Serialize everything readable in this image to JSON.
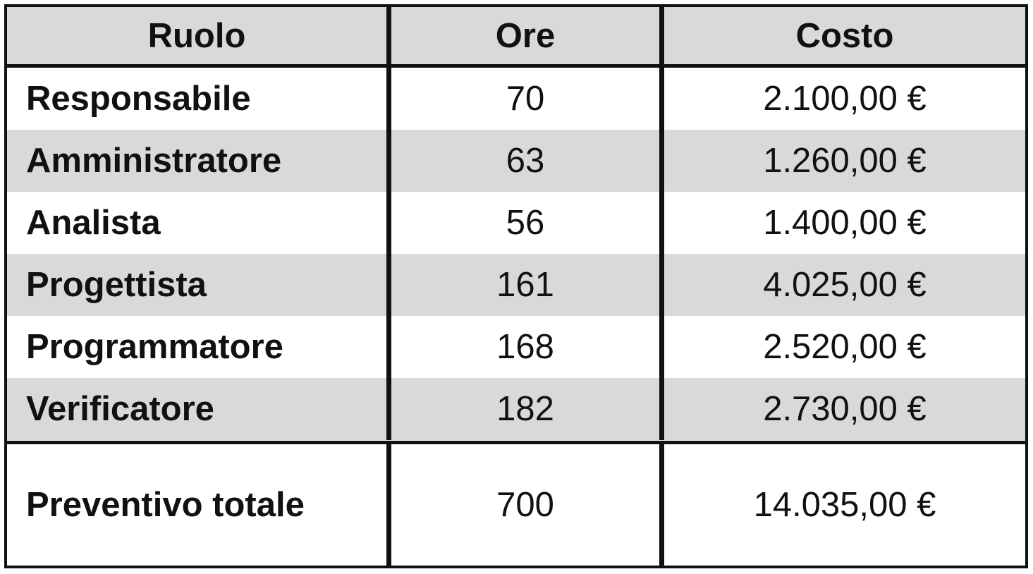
{
  "table": {
    "headers": [
      "Ruolo",
      "Ore",
      "Costo"
    ],
    "rows": [
      {
        "role": "Responsabile",
        "hours": "70",
        "cost": "2.100,00 €"
      },
      {
        "role": "Amministratore",
        "hours": "63",
        "cost": "1.260,00 €"
      },
      {
        "role": "Analista",
        "hours": "56",
        "cost": "1.400,00 €"
      },
      {
        "role": "Progettista",
        "hours": "161",
        "cost": "4.025,00 €"
      },
      {
        "role": "Programmatore",
        "hours": "168",
        "cost": "2.520,00 €"
      },
      {
        "role": "Verificatore",
        "hours": "182",
        "cost": "2.730,00 €"
      }
    ],
    "total": {
      "label": "Preventivo totale",
      "hours": "700",
      "cost": "14.035,00 €"
    }
  },
  "colors": {
    "header_bg": "#d9d9d9",
    "stripe_bg": "#d9d9d9",
    "border": "#111111",
    "text": "#111111"
  }
}
